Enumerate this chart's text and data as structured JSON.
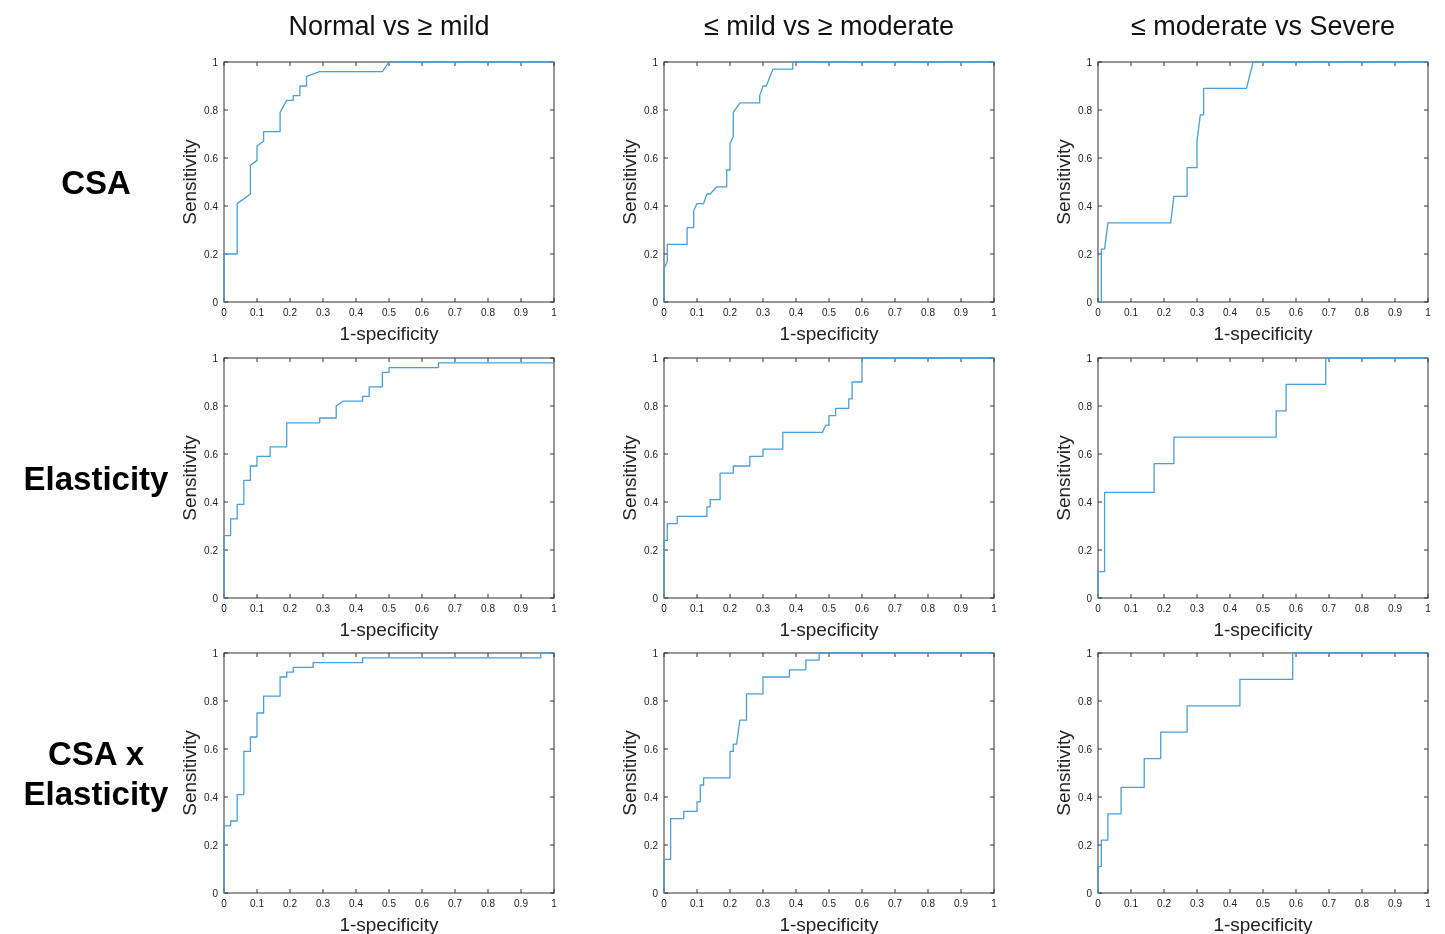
{
  "chart_data": [
    {
      "type": "line",
      "title": "Normal vs ≥ mild",
      "annotations": [
        "CSA"
      ],
      "xlabel": "1-specificity",
      "ylabel": "Sensitivity",
      "xlim": [
        0,
        1
      ],
      "ylim": [
        0,
        1
      ],
      "xticks": [
        0,
        0.1,
        0.2,
        0.3,
        0.4,
        0.5,
        0.6,
        0.7,
        0.8,
        0.9,
        1
      ],
      "yticks": [
        0,
        0.2,
        0.4,
        0.6,
        0.8,
        1
      ],
      "series": [
        {
          "color": "#4a9fd6",
          "x": [
            0,
            0,
            0.04,
            0.04,
            0.08,
            0.08,
            0.1,
            0.1,
            0.12,
            0.12,
            0.17,
            0.17,
            0.19,
            0.21,
            0.21,
            0.23,
            0.23,
            0.25,
            0.25,
            0.29,
            0.48,
            0.5,
            1
          ],
          "values": [
            0,
            0.2,
            0.2,
            0.41,
            0.45,
            0.57,
            0.59,
            0.65,
            0.67,
            0.71,
            0.71,
            0.79,
            0.84,
            0.84,
            0.86,
            0.86,
            0.9,
            0.9,
            0.94,
            0.96,
            0.96,
            1,
            1
          ]
        }
      ]
    },
    {
      "type": "line",
      "title": "≤ mild  vs  ≥ moderate",
      "xlabel": "1-specificity",
      "ylabel": "Sensitivity",
      "xlim": [
        0,
        1
      ],
      "ylim": [
        0,
        1
      ],
      "xticks": [
        0,
        0.1,
        0.2,
        0.3,
        0.4,
        0.5,
        0.6,
        0.7,
        0.8,
        0.9,
        1
      ],
      "yticks": [
        0,
        0.2,
        0.4,
        0.6,
        0.8,
        1
      ],
      "series": [
        {
          "color": "#4a9fd6",
          "x": [
            0,
            0,
            0.01,
            0.01,
            0.07,
            0.07,
            0.09,
            0.09,
            0.1,
            0.12,
            0.13,
            0.14,
            0.16,
            0.19,
            0.19,
            0.2,
            0.2,
            0.21,
            0.21,
            0.23,
            0.29,
            0.29,
            0.3,
            0.31,
            0.33,
            0.39,
            0.39,
            1
          ],
          "values": [
            0,
            0.14,
            0.17,
            0.24,
            0.24,
            0.31,
            0.31,
            0.38,
            0.41,
            0.41,
            0.45,
            0.45,
            0.48,
            0.48,
            0.55,
            0.55,
            0.66,
            0.69,
            0.79,
            0.83,
            0.83,
            0.86,
            0.9,
            0.9,
            0.97,
            0.97,
            1,
            1
          ]
        }
      ]
    },
    {
      "type": "line",
      "title": "≤ moderate vs Severe",
      "xlabel": "1-specificity",
      "ylabel": "Sensitivity",
      "xlim": [
        0,
        1
      ],
      "ylim": [
        0,
        1
      ],
      "xticks": [
        0,
        0.1,
        0.2,
        0.3,
        0.4,
        0.5,
        0.6,
        0.7,
        0.8,
        0.9,
        1
      ],
      "yticks": [
        0,
        0.2,
        0.4,
        0.6,
        0.8,
        1
      ],
      "series": [
        {
          "color": "#4a9fd6",
          "x": [
            0,
            0.01,
            0.01,
            0.02,
            0.03,
            0.22,
            0.23,
            0.27,
            0.27,
            0.3,
            0.3,
            0.31,
            0.32,
            0.32,
            0.45,
            0.47,
            1
          ],
          "values": [
            0,
            0,
            0.22,
            0.22,
            0.33,
            0.33,
            0.44,
            0.44,
            0.56,
            0.56,
            0.67,
            0.78,
            0.78,
            0.89,
            0.89,
            1,
            1
          ]
        }
      ]
    },
    {
      "type": "line",
      "annotations": [
        "Elasticity"
      ],
      "xlabel": "1-specificity",
      "ylabel": "Sensitivity",
      "xlim": [
        0,
        1
      ],
      "ylim": [
        0,
        1
      ],
      "xticks": [
        0,
        0.1,
        0.2,
        0.3,
        0.4,
        0.5,
        0.6,
        0.7,
        0.8,
        0.9,
        1
      ],
      "yticks": [
        0,
        0.2,
        0.4,
        0.6,
        0.8,
        1
      ],
      "series": [
        {
          "color": "#4a9fd6",
          "x": [
            0,
            0,
            0.02,
            0.02,
            0.04,
            0.04,
            0.06,
            0.06,
            0.08,
            0.08,
            0.1,
            0.1,
            0.14,
            0.14,
            0.19,
            0.19,
            0.29,
            0.29,
            0.34,
            0.34,
            0.36,
            0.42,
            0.42,
            0.44,
            0.44,
            0.48,
            0.48,
            0.5,
            0.5,
            0.65,
            0.65,
            1
          ],
          "values": [
            0,
            0.26,
            0.26,
            0.33,
            0.33,
            0.39,
            0.39,
            0.49,
            0.49,
            0.55,
            0.55,
            0.59,
            0.59,
            0.63,
            0.63,
            0.73,
            0.73,
            0.75,
            0.75,
            0.8,
            0.82,
            0.82,
            0.84,
            0.84,
            0.88,
            0.88,
            0.94,
            0.94,
            0.96,
            0.96,
            0.98,
            0.98
          ]
        }
      ]
    },
    {
      "type": "line",
      "xlabel": "1-specificity",
      "ylabel": "Sensitivity",
      "xlim": [
        0,
        1
      ],
      "ylim": [
        0,
        1
      ],
      "xticks": [
        0,
        0.1,
        0.2,
        0.3,
        0.4,
        0.5,
        0.6,
        0.7,
        0.8,
        0.9,
        1
      ],
      "yticks": [
        0,
        0.2,
        0.4,
        0.6,
        0.8,
        1
      ],
      "series": [
        {
          "color": "#4a9fd6",
          "x": [
            0,
            0,
            0.01,
            0.01,
            0.04,
            0.04,
            0.13,
            0.13,
            0.14,
            0.14,
            0.17,
            0.17,
            0.21,
            0.21,
            0.26,
            0.26,
            0.3,
            0.3,
            0.36,
            0.36,
            0.48,
            0.49,
            0.5,
            0.5,
            0.52,
            0.52,
            0.56,
            0.56,
            0.57,
            0.57,
            0.6,
            0.6,
            1
          ],
          "values": [
            0,
            0.24,
            0.24,
            0.31,
            0.31,
            0.34,
            0.34,
            0.38,
            0.38,
            0.41,
            0.41,
            0.52,
            0.52,
            0.55,
            0.55,
            0.59,
            0.59,
            0.62,
            0.62,
            0.69,
            0.69,
            0.72,
            0.72,
            0.76,
            0.76,
            0.79,
            0.79,
            0.83,
            0.83,
            0.9,
            0.9,
            1,
            1
          ]
        }
      ]
    },
    {
      "type": "line",
      "xlabel": "1-specificity",
      "ylabel": "Sensitivity",
      "xlim": [
        0,
        1
      ],
      "ylim": [
        0,
        1
      ],
      "xticks": [
        0,
        0.1,
        0.2,
        0.3,
        0.4,
        0.5,
        0.6,
        0.7,
        0.8,
        0.9,
        1
      ],
      "yticks": [
        0,
        0.2,
        0.4,
        0.6,
        0.8,
        1
      ],
      "series": [
        {
          "color": "#4a9fd6",
          "x": [
            0,
            0,
            0.02,
            0.02,
            0.17,
            0.17,
            0.23,
            0.23,
            0.54,
            0.54,
            0.57,
            0.57,
            0.69,
            0.69,
            1
          ],
          "values": [
            0,
            0.11,
            0.11,
            0.44,
            0.44,
            0.56,
            0.56,
            0.67,
            0.67,
            0.78,
            0.78,
            0.89,
            0.89,
            1,
            1
          ]
        }
      ]
    },
    {
      "type": "line",
      "annotations": [
        "CSA x Elasticity"
      ],
      "xlabel": "1-specificity",
      "ylabel": "Sensitivity",
      "xlim": [
        0,
        1
      ],
      "ylim": [
        0,
        1
      ],
      "xticks": [
        0,
        0.1,
        0.2,
        0.3,
        0.4,
        0.5,
        0.6,
        0.7,
        0.8,
        0.9,
        1
      ],
      "yticks": [
        0,
        0.2,
        0.4,
        0.6,
        0.8,
        1
      ],
      "series": [
        {
          "color": "#4a9fd6",
          "x": [
            0,
            0,
            0.02,
            0.02,
            0.04,
            0.04,
            0.06,
            0.06,
            0.08,
            0.08,
            0.1,
            0.1,
            0.12,
            0.12,
            0.17,
            0.17,
            0.19,
            0.19,
            0.21,
            0.21,
            0.27,
            0.27,
            0.42,
            0.42,
            0.96,
            0.96,
            1
          ],
          "values": [
            0,
            0.28,
            0.28,
            0.3,
            0.3,
            0.41,
            0.41,
            0.59,
            0.59,
            0.65,
            0.65,
            0.75,
            0.75,
            0.82,
            0.82,
            0.9,
            0.9,
            0.92,
            0.92,
            0.94,
            0.94,
            0.96,
            0.96,
            0.98,
            0.98,
            1,
            1
          ]
        }
      ]
    },
    {
      "type": "line",
      "xlabel": "1-specificity",
      "ylabel": "Sensitivity",
      "xlim": [
        0,
        1
      ],
      "ylim": [
        0,
        1
      ],
      "xticks": [
        0,
        0.1,
        0.2,
        0.3,
        0.4,
        0.5,
        0.6,
        0.7,
        0.8,
        0.9,
        1
      ],
      "yticks": [
        0,
        0.2,
        0.4,
        0.6,
        0.8,
        1
      ],
      "series": [
        {
          "color": "#4a9fd6",
          "x": [
            0,
            0,
            0.02,
            0.02,
            0.06,
            0.06,
            0.1,
            0.1,
            0.11,
            0.11,
            0.12,
            0.12,
            0.2,
            0.2,
            0.21,
            0.21,
            0.22,
            0.23,
            0.25,
            0.25,
            0.3,
            0.3,
            0.38,
            0.38,
            0.43,
            0.43,
            0.47,
            0.47,
            1
          ],
          "values": [
            0,
            0.14,
            0.14,
            0.31,
            0.31,
            0.34,
            0.34,
            0.38,
            0.38,
            0.45,
            0.45,
            0.48,
            0.48,
            0.59,
            0.59,
            0.62,
            0.62,
            0.72,
            0.72,
            0.83,
            0.83,
            0.9,
            0.9,
            0.93,
            0.93,
            0.97,
            0.97,
            1,
            1
          ]
        }
      ]
    },
    {
      "type": "line",
      "xlabel": "1-specificity",
      "ylabel": "Sensitivity",
      "xlim": [
        0,
        1
      ],
      "ylim": [
        0,
        1
      ],
      "xticks": [
        0,
        0.1,
        0.2,
        0.3,
        0.4,
        0.5,
        0.6,
        0.7,
        0.8,
        0.9,
        1
      ],
      "yticks": [
        0,
        0.2,
        0.4,
        0.6,
        0.8,
        1
      ],
      "series": [
        {
          "color": "#4a9fd6",
          "x": [
            0,
            0,
            0.01,
            0.01,
            0.03,
            0.03,
            0.07,
            0.07,
            0.14,
            0.14,
            0.19,
            0.19,
            0.27,
            0.27,
            0.43,
            0.43,
            0.59,
            0.59,
            1
          ],
          "values": [
            0,
            0.11,
            0.11,
            0.22,
            0.22,
            0.33,
            0.33,
            0.44,
            0.44,
            0.56,
            0.56,
            0.67,
            0.67,
            0.78,
            0.78,
            0.89,
            0.89,
            1,
            1
          ]
        }
      ]
    }
  ]
}
